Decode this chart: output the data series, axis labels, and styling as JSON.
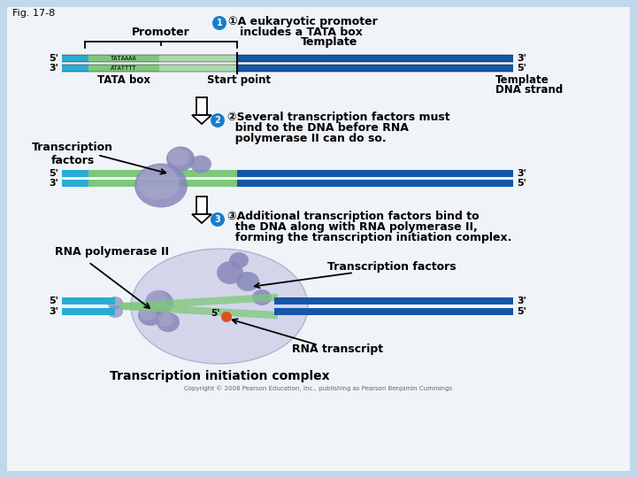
{
  "fig_label": "Fig. 17-8",
  "bg_color": "#c0d8ea",
  "white_bg": "#f0f4f8",
  "title1_line1": "①A eukaryotic promoter",
  "title1_line2": "   includes a TATA box",
  "step2_line1": "②Several transcription factors must",
  "step2_line2": "  bind to the DNA before RNA",
  "step2_line3": "  polymerase II can do so.",
  "step3_line1": "③Additional transcription factors bind to",
  "step3_line2": "  the DNA along with RNA polymerase II,",
  "step3_line3": "  forming the transcription initiation complex.",
  "label_promoter": "Promoter",
  "label_template_top": "Template",
  "label_tata": "TATA box",
  "label_start": "Start point",
  "label_template2a": "Template",
  "label_template2b": "DNA strand",
  "label_tf": "Transcription\nfactors",
  "label_rna_pol": "RNA polymerase II",
  "label_tf2": "Transcription factors",
  "label_rna_transcript": "RNA transcript",
  "label_tic": "Transcription initiation complex",
  "copyright": "Copyright © 2008 Pearson Education, Inc., publishing as Pearson Benjamin Cummings",
  "dna_cyan": "#29acd4",
  "dna_blue": "#1457a8",
  "tata_green": "#7dc87a",
  "blob_purple": "#8888bb",
  "blob_light": "#aaaacc",
  "outer_blob": "#d0d0e8",
  "circle_blue": "#1a7cc9",
  "orange_dot": "#e05020"
}
